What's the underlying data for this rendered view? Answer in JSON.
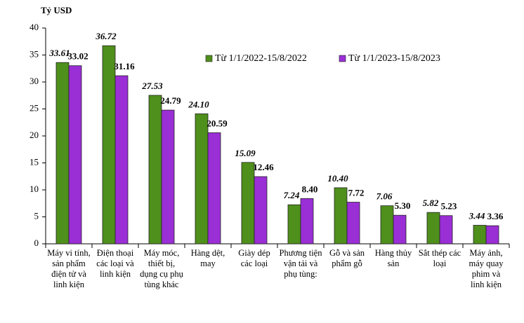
{
  "chart_data": {
    "type": "bar",
    "y_axis_title": "Tỷ USD",
    "categories": [
      "Máy vi tính, sản phẩm điện tử và linh kiện",
      "Điện thoại các loại và linh kiện",
      "Máy móc, thiết bị, dụng cụ phụ tùng khác",
      "Hàng dệt, may",
      "Giày dép các loại",
      "Phương tiện vận tải và phụ tùng:",
      "Gỗ và sản phẩm gỗ",
      "Hàng thủy sản",
      "Sắt thép các loại",
      "Máy ảnh, máy quay phim và linh kiện"
    ],
    "series": [
      {
        "name": "Từ 1/1/2022-15/8/2022",
        "color": "#4f8f1c",
        "values": [
          33.61,
          36.72,
          27.53,
          24.1,
          15.09,
          7.24,
          10.4,
          7.06,
          5.82,
          3.44
        ],
        "value_labels": [
          "33.61",
          "36.72",
          "27.53",
          "24.10",
          "15.09",
          "7.24",
          "10.40",
          "7.06",
          "5.82",
          "3.44"
        ]
      },
      {
        "name": "Từ 1/1/2023-15/8/2023",
        "color": "#9a2fd6",
        "values": [
          33.02,
          31.16,
          24.79,
          20.59,
          12.46,
          8.4,
          7.72,
          5.3,
          5.23,
          3.36
        ],
        "value_labels": [
          "33.02",
          "31.16",
          "24.79",
          "20.59",
          "12.46",
          "8.40",
          "7.72",
          "5.30",
          "5.23",
          "3.36"
        ]
      }
    ],
    "ylim": [
      0,
      40
    ],
    "yticks": [
      0,
      5,
      10,
      15,
      20,
      25,
      30,
      35,
      40
    ],
    "grid": false
  }
}
